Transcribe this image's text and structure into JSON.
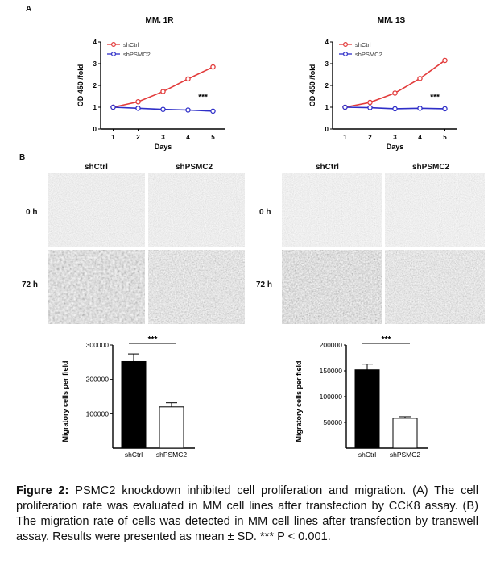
{
  "panel_a_label": "A",
  "panel_b_label": "B",
  "chart_data": [
    {
      "type": "line",
      "title": "MM. 1R",
      "xlabel": "Days",
      "ylabel": "OD 450 /fold",
      "x": [
        1,
        2,
        3,
        4,
        5
      ],
      "xlim": [
        0.5,
        5.5
      ],
      "ylim": [
        0,
        4
      ],
      "yticks": [
        0,
        1,
        2,
        3,
        4
      ],
      "series": [
        {
          "name": "shCtrl",
          "color": "#e23b3b",
          "marker": "circle-open",
          "values": [
            1.0,
            1.25,
            1.72,
            2.3,
            2.85
          ]
        },
        {
          "name": "shPSMC2",
          "color": "#2f2fc8",
          "marker": "circle-open",
          "values": [
            1.0,
            0.95,
            0.9,
            0.87,
            0.82
          ]
        }
      ],
      "annotation": "***",
      "legend": "top-left"
    },
    {
      "type": "line",
      "title": "MM. 1S",
      "xlabel": "Days",
      "ylabel": "OD 450 /fold",
      "x": [
        1,
        2,
        3,
        4,
        5
      ],
      "xlim": [
        0.5,
        5.5
      ],
      "ylim": [
        0,
        4
      ],
      "yticks": [
        0,
        1,
        2,
        3,
        4
      ],
      "series": [
        {
          "name": "shCtrl",
          "color": "#e23b3b",
          "marker": "circle-open",
          "values": [
            1.0,
            1.22,
            1.65,
            2.32,
            3.15
          ]
        },
        {
          "name": "shPSMC2",
          "color": "#2f2fc8",
          "marker": "circle-open",
          "values": [
            1.0,
            0.98,
            0.93,
            0.95,
            0.93
          ]
        }
      ],
      "annotation": "***",
      "legend": "top-left"
    },
    {
      "type": "bar",
      "ylabel": "Migratory cells per field",
      "categories": [
        "shCtrl",
        "shPSMC2"
      ],
      "values": [
        252000,
        120000
      ],
      "errors": [
        22000,
        12000
      ],
      "fills": [
        "#000000",
        "#ffffff"
      ],
      "ylim": [
        0,
        300000
      ],
      "yticks": [
        100000,
        200000,
        300000
      ],
      "annotation": "***"
    },
    {
      "type": "bar",
      "ylabel": "Migratory cells per field",
      "categories": [
        "shCtrl",
        "shPSMC2"
      ],
      "values": [
        152000,
        58000
      ],
      "errors": [
        11000,
        3000
      ],
      "fills": [
        "#000000",
        "#ffffff"
      ],
      "ylim": [
        0,
        200000
      ],
      "yticks": [
        50000,
        100000,
        150000,
        200000
      ],
      "annotation": "***"
    }
  ],
  "micrographs": {
    "column_labels": [
      "shCtrl",
      "shPSMC2"
    ],
    "row_labels": [
      "0 h",
      "72 h"
    ]
  },
  "caption": {
    "label": "Figure 2:",
    "text": " PSMC2 knockdown inhibited cell proliferation and migration. (A) The cell proliferation rate was evaluated in MM cell lines after transfection by CCK8 assay. (B) The migration rate of cells was detected in MM cell lines after transfection by transwell assay. Results were presented as mean ± SD. *** P < 0.001."
  }
}
